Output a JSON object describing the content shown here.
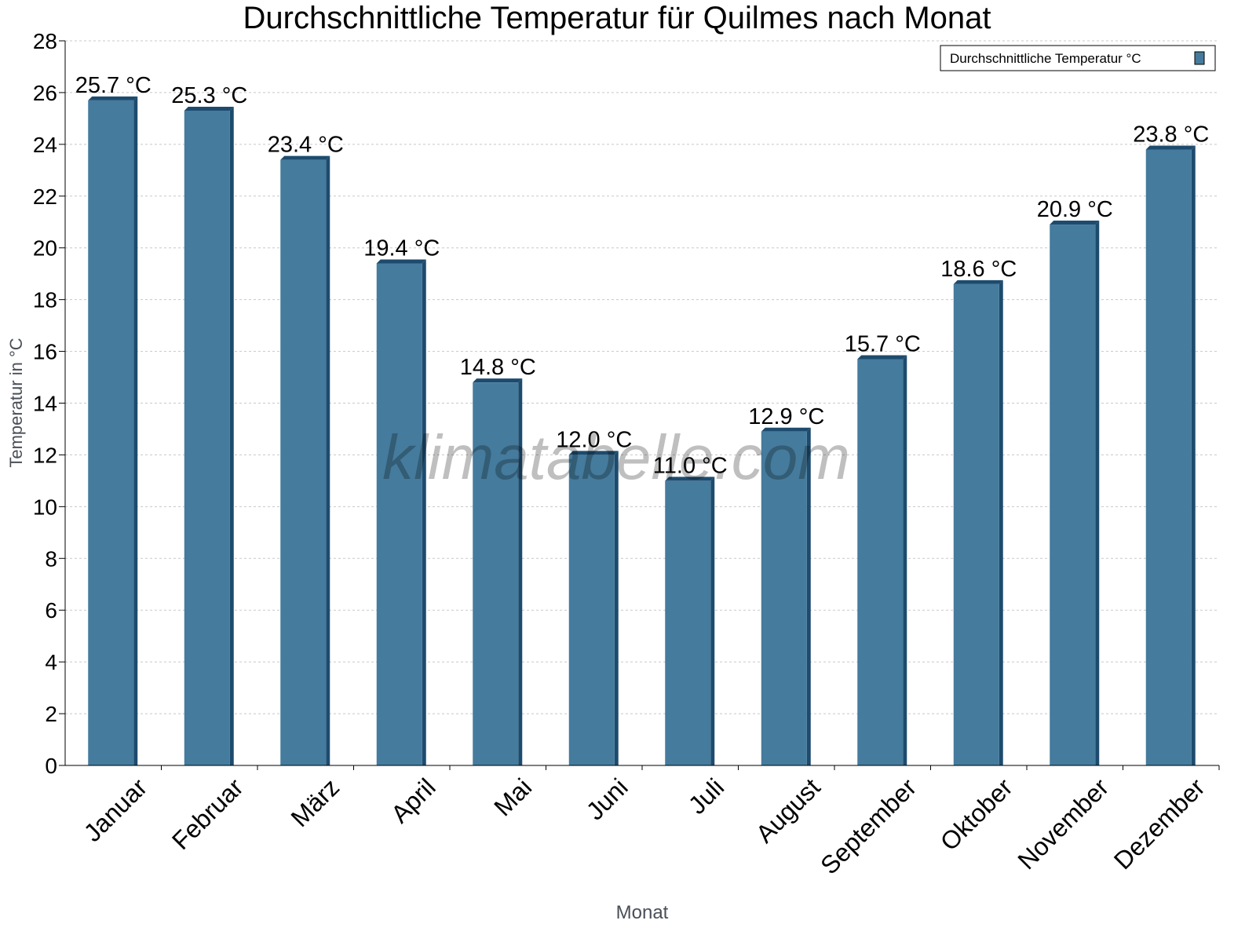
{
  "chart_data": {
    "type": "bar",
    "title": "Durchschnittliche Temperatur für Quilmes nach Monat",
    "xlabel": "Monat",
    "ylabel": "Temperatur in °C",
    "ylim": [
      0,
      28
    ],
    "yticks": [
      0,
      2,
      4,
      6,
      8,
      10,
      12,
      14,
      16,
      18,
      20,
      22,
      24,
      26,
      28
    ],
    "grid": true,
    "legend_position": "top-right",
    "categories": [
      "Januar",
      "Februar",
      "März",
      "April",
      "Mai",
      "Juni",
      "Juli",
      "August",
      "September",
      "Oktober",
      "November",
      "Dezember"
    ],
    "series": [
      {
        "name": "Durchschnittliche Temperatur °C",
        "values": [
          25.7,
          25.3,
          23.4,
          19.4,
          14.8,
          12.0,
          11.0,
          12.9,
          15.7,
          18.6,
          20.9,
          23.8
        ],
        "labels": [
          "25.7 °C",
          "25.3 °C",
          "23.4 °C",
          "19.4 °C",
          "14.8 °C",
          "12.0 °C",
          "11.0 °C",
          "12.9 °C",
          "15.7 °C",
          "18.6 °C",
          "20.9 °C",
          "23.8 °C"
        ],
        "color": "#457b9d",
        "side_color": "#1d4b6e"
      }
    ],
    "watermark": "klimatabelle.com"
  }
}
